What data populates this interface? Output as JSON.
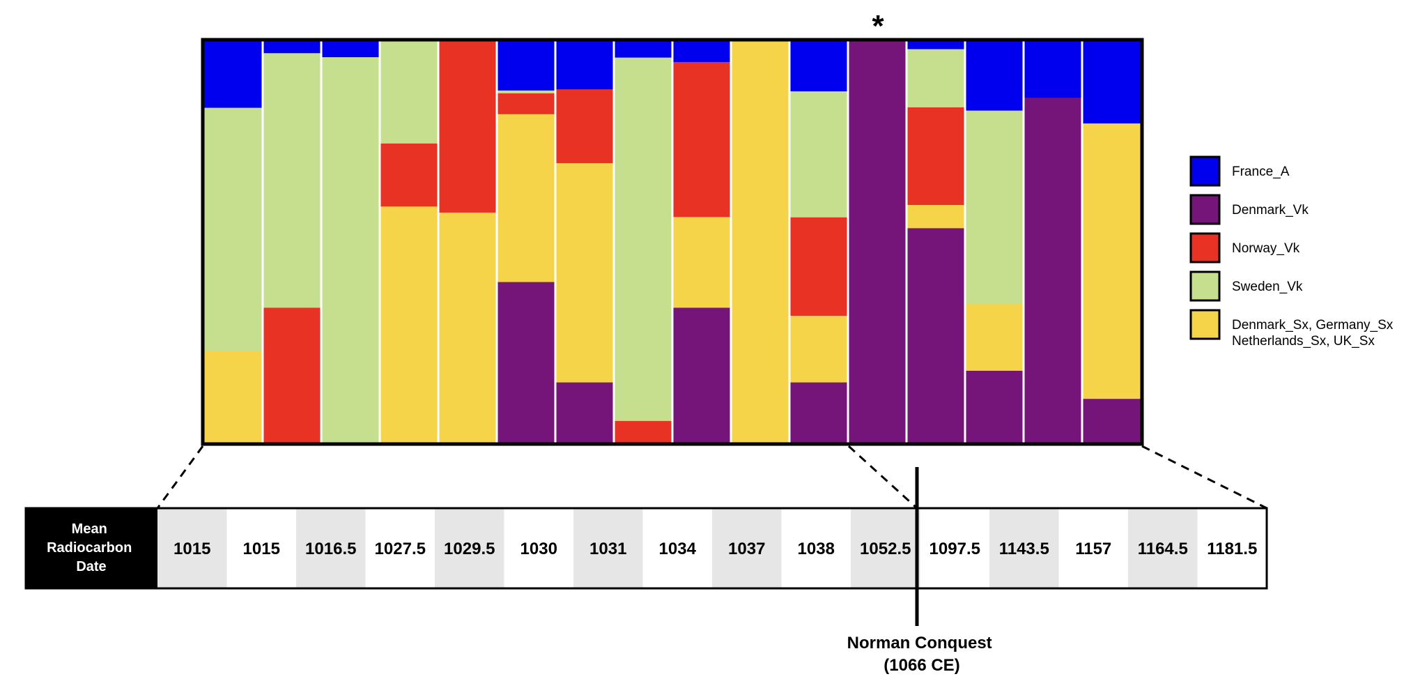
{
  "chart_data": {
    "type": "bar",
    "stacked": true,
    "normalized": true,
    "ylim": [
      0,
      1
    ],
    "annotation_marker": "*",
    "annotated_bar_index": 11,
    "categories": [
      "1015",
      "1015",
      "1016.5",
      "1027.5",
      "1029.5",
      "1030",
      "1031",
      "1034",
      "1037",
      "1038",
      "1052.5",
      "1097.5",
      "1143.5",
      "1157",
      "1164.5",
      "1181.5"
    ],
    "series": [
      {
        "name": "France_A",
        "color": "#0000ee",
        "values": [
          0.166,
          0.03,
          0.04,
          0,
          0,
          0.123,
          0.12,
          0.041,
          0.052,
          0,
          0.125,
          0,
          0.02,
          0.173,
          0.141,
          0.205
        ]
      },
      {
        "name": "Sweden_Vk",
        "color": "#c6df8e",
        "values": [
          0.605,
          0.634,
          0.96,
          0.255,
          0,
          0.007,
          0,
          0.905,
          0,
          0,
          0.314,
          0,
          0.145,
          0.482,
          0,
          0
        ]
      },
      {
        "name": "Norway_Vk",
        "color": "#e83324",
        "values": [
          0,
          0.336,
          0,
          0.157,
          0.427,
          0.052,
          0.184,
          0.054,
          0.386,
          0,
          0.245,
          0,
          0.243,
          0,
          0,
          0
        ]
      },
      {
        "name": "Denmark_Sx, Germany_Sx\nNetherlands_Sx, UK_Sx",
        "color": "#f6d44a",
        "values": [
          0.229,
          0,
          0,
          0.588,
          0.573,
          0.418,
          0.546,
          0,
          0.226,
          1,
          0.166,
          0,
          0.058,
          0.166,
          0,
          0.686
        ]
      },
      {
        "name": "Denmark_Vk",
        "color": "#75157a",
        "values": [
          0,
          0,
          0,
          0,
          0,
          0.4,
          0.15,
          0,
          0.336,
          0,
          0.15,
          1,
          0.534,
          0.179,
          0.859,
          0.109
        ]
      }
    ],
    "legend_order": [
      "France_A",
      "Denmark_Vk",
      "Norway_Vk",
      "Sweden_Vk",
      "Denmark_Sx, Germany_Sx\nNetherlands_Sx, UK_Sx"
    ],
    "legend_position": "right"
  },
  "legend": {
    "items": [
      {
        "lines": [
          "France_A"
        ],
        "color": "#0000ee"
      },
      {
        "lines": [
          "Denmark_Vk"
        ],
        "color": "#75157a"
      },
      {
        "lines": [
          "Norway_Vk"
        ],
        "color": "#e83324"
      },
      {
        "lines": [
          "Sweden_Vk"
        ],
        "color": "#c6df8e"
      },
      {
        "lines": [
          "Denmark_Sx, Germany_Sx",
          "Netherlands_Sx, UK_Sx"
        ],
        "color": "#f6d44a"
      }
    ]
  },
  "table": {
    "header_lines": [
      "Mean",
      "Radiocarbon",
      "Date"
    ],
    "dates": [
      "1015",
      "1015",
      "1016.5",
      "1027.5",
      "1029.5",
      "1030",
      "1031",
      "1034",
      "1037",
      "1038",
      "1052.5",
      "1097.5",
      "1143.5",
      "1157",
      "1164.5",
      "1181.5"
    ]
  },
  "event": {
    "line1": "Norman Conquest",
    "line2": "(1066 CE)"
  }
}
